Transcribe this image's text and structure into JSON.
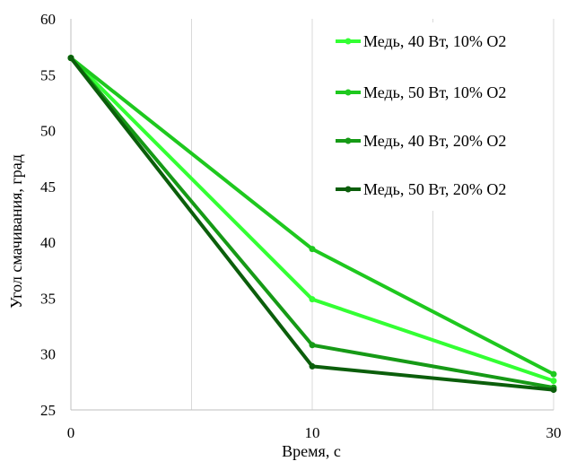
{
  "chart_data": {
    "type": "line",
    "xlabel": "Время, с",
    "ylabel": "Угол смачивания,  град",
    "x": [
      0,
      10,
      30
    ],
    "x_ticks": [
      "0",
      "10",
      "30"
    ],
    "y_ticks": [
      "25",
      "30",
      "35",
      "40",
      "45",
      "50",
      "55",
      "60"
    ],
    "ylim": [
      25,
      60
    ],
    "grid": "vertical",
    "legend_position": "top-right",
    "series": [
      {
        "name": "Медь, 40 Вт, 10% O2",
        "color": "#33ff33",
        "values": [
          56.5,
          34.9,
          27.6
        ]
      },
      {
        "name": "Медь, 50 Вт, 10% O2",
        "color": "#1ec81e",
        "values": [
          56.5,
          39.4,
          28.2
        ]
      },
      {
        "name": "Медь, 40 Вт, 20% O2",
        "color": "#169a16",
        "values": [
          56.5,
          30.8,
          27.0
        ]
      },
      {
        "name": "Медь, 50 Вт, 20% O2",
        "color": "#0b5e0b",
        "values": [
          56.5,
          28.9,
          26.8
        ]
      }
    ]
  }
}
